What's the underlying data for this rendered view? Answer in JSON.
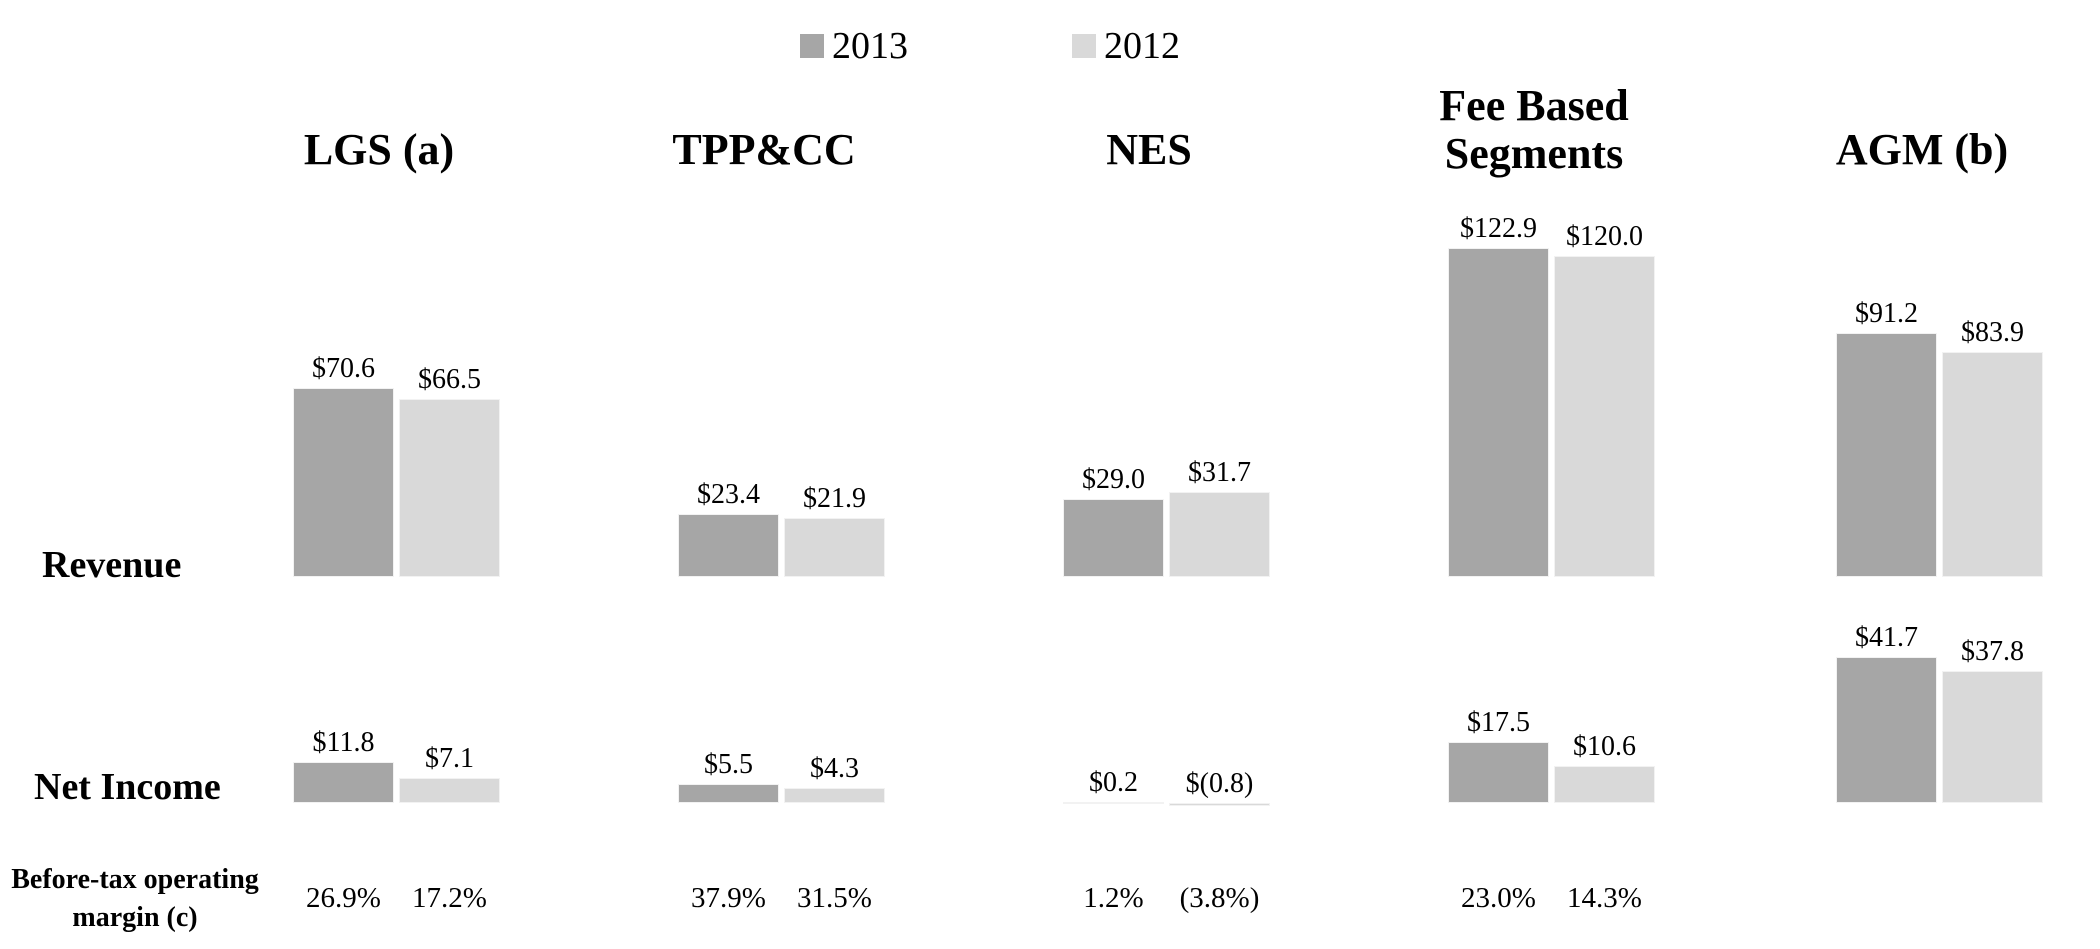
{
  "legend": {
    "items": [
      {
        "label": "2013",
        "color": "#a6a6a6"
      },
      {
        "label": "2012",
        "color": "#d9d9d9"
      }
    ]
  },
  "row_labels": {
    "revenue": "Revenue",
    "net_income": "Net Income",
    "margin_lines": [
      "Before-tax operating",
      "margin (c)"
    ]
  },
  "chart_data": {
    "type": "bar",
    "title": "",
    "legend": [
      "2013",
      "2012"
    ],
    "legend_position": "top-center",
    "colors": {
      "2013": "#a6a6a6",
      "2012": "#d9d9d9"
    },
    "categories": [
      "LGS (a)",
      "TPP&CC",
      "NES",
      "Fee Based Segments",
      "AGM (b)"
    ],
    "rows": [
      "Revenue",
      "Net Income",
      "Before-tax operating margin (c)"
    ],
    "groups": [
      {
        "category": "LGS (a)",
        "revenue": [
          70.6,
          66.5
        ],
        "revenue_labels": [
          "$70.6",
          "$66.5"
        ],
        "net_income": [
          11.8,
          7.1
        ],
        "net_income_labels": [
          "$11.8",
          "$7.1"
        ],
        "margins": [
          "26.9%",
          "17.2%"
        ]
      },
      {
        "category": "TPP&CC",
        "revenue": [
          23.4,
          21.9
        ],
        "revenue_labels": [
          "$23.4",
          "$21.9"
        ],
        "net_income": [
          5.5,
          4.3
        ],
        "net_income_labels": [
          "$5.5",
          "$4.3"
        ],
        "margins": [
          "37.9%",
          "31.5%"
        ]
      },
      {
        "category": "NES",
        "revenue": [
          29.0,
          31.7
        ],
        "revenue_labels": [
          "$29.0",
          "$31.7"
        ],
        "net_income": [
          0.2,
          -0.8
        ],
        "net_income_labels": [
          "$0.2",
          "$(0.8)"
        ],
        "margins": [
          "1.2%",
          "(3.8%)"
        ]
      },
      {
        "category": "Fee Based Segments",
        "revenue": [
          122.9,
          120.0
        ],
        "revenue_labels": [
          "$122.9",
          "$120.0"
        ],
        "net_income": [
          17.5,
          10.6
        ],
        "net_income_labels": [
          "$17.5",
          "$10.6"
        ],
        "margins": [
          "23.0%",
          "14.3%"
        ]
      },
      {
        "category": "AGM (b)",
        "revenue": [
          91.2,
          83.9
        ],
        "revenue_labels": [
          "$91.2",
          "$83.9"
        ],
        "net_income": [
          41.7,
          37.8
        ],
        "net_income_labels": [
          "$41.7",
          "$37.8"
        ],
        "margins": []
      }
    ]
  }
}
